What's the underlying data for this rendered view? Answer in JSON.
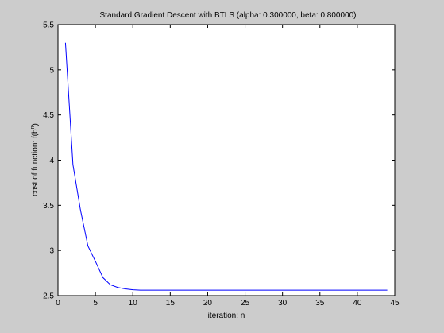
{
  "chart_data": {
    "type": "line",
    "title": "Standard Gradient Descent with BTLS (alpha: 0.300000, beta: 0.800000)",
    "xlabel": "iteration: n",
    "ylabel_main": "cost of function: f(b",
    "ylabel_sup": "n",
    "ylabel_close": ")",
    "xlim": [
      0,
      45
    ],
    "ylim": [
      2.5,
      5.5
    ],
    "xticks": [
      0,
      5,
      10,
      15,
      20,
      25,
      30,
      35,
      40,
      45
    ],
    "yticks": [
      2.5,
      3,
      3.5,
      4,
      4.5,
      5,
      5.5
    ],
    "ytick_labels": [
      "2.5",
      "3",
      "3.5",
      "4",
      "4.5",
      "5",
      "5.5"
    ],
    "grid": false,
    "series": [
      {
        "color": "#0000ff",
        "x": [
          1,
          2,
          3,
          4,
          5,
          6,
          7,
          8,
          9,
          10,
          11,
          12,
          13,
          14,
          15,
          16,
          17,
          18,
          19,
          20,
          21,
          22,
          23,
          24,
          25,
          26,
          27,
          28,
          29,
          30,
          31,
          32,
          33,
          34,
          35,
          36,
          37,
          38,
          39,
          40,
          41,
          42,
          43,
          44
        ],
        "y": [
          5.3,
          3.95,
          3.45,
          3.05,
          2.88,
          2.7,
          2.62,
          2.59,
          2.575,
          2.565,
          2.56,
          2.56,
          2.56,
          2.56,
          2.56,
          2.56,
          2.56,
          2.56,
          2.56,
          2.56,
          2.56,
          2.56,
          2.56,
          2.56,
          2.56,
          2.56,
          2.56,
          2.56,
          2.56,
          2.56,
          2.56,
          2.56,
          2.56,
          2.56,
          2.56,
          2.56,
          2.56,
          2.56,
          2.56,
          2.56,
          2.56,
          2.56,
          2.56,
          2.56
        ]
      }
    ]
  }
}
